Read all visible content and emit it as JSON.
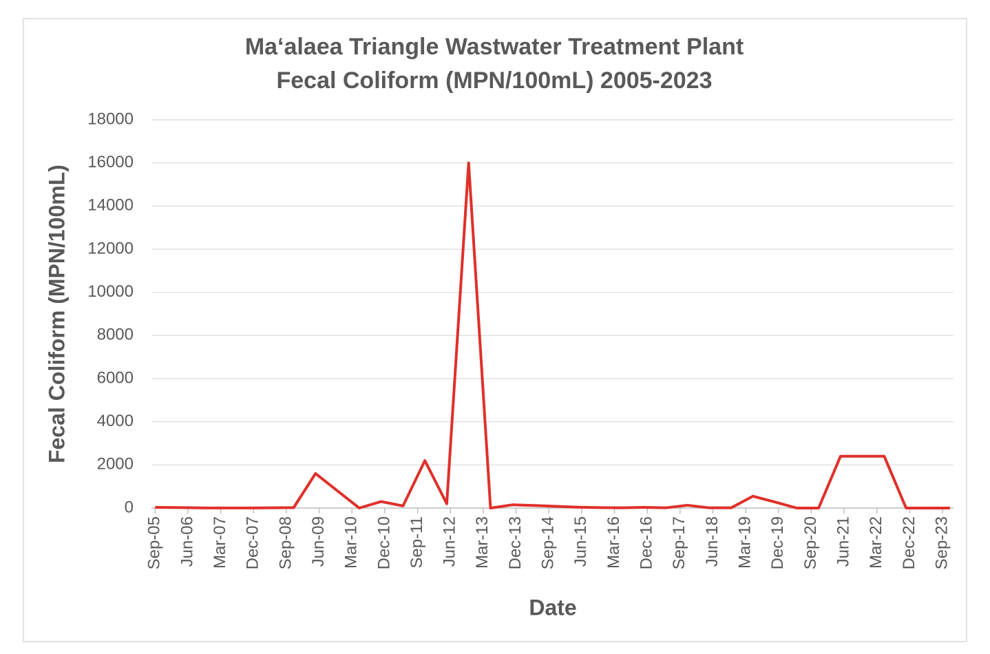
{
  "chart_data": {
    "type": "line",
    "title": [
      "Maʻalaea Triangle Wastwater Treatment Plant",
      "Fecal Coliform (MPN/100mL) 2005-2023"
    ],
    "x_label": "Date",
    "y_label": "Fecal Coliform (MPN/100mL)",
    "x": [
      "2005-09",
      "2006-05",
      "2006-11",
      "2007-05",
      "2007-11",
      "2008-05",
      "2008-11",
      "2009-05",
      "2009-11",
      "2010-05",
      "2010-11",
      "2011-05",
      "2011-11",
      "2012-05",
      "2012-11",
      "2013-05",
      "2013-11",
      "2014-05",
      "2014-11",
      "2015-05",
      "2015-11",
      "2016-05",
      "2016-11",
      "2017-05",
      "2017-11",
      "2018-05",
      "2018-11",
      "2019-05",
      "2019-11",
      "2020-05",
      "2020-11",
      "2021-05",
      "2021-11",
      "2022-05",
      "2022-11",
      "2023-05",
      "2023-11"
    ],
    "series": [
      {
        "name": "Fecal Coliform",
        "color": "#e0302a",
        "values": [
          30,
          20,
          5,
          5,
          5,
          10,
          20,
          1600,
          800,
          0,
          300,
          100,
          2200,
          200,
          16000,
          0,
          150,
          120,
          80,
          40,
          20,
          10,
          30,
          10,
          130,
          10,
          10,
          550,
          280,
          0,
          0,
          2400,
          2400,
          2400,
          0,
          0,
          0
        ]
      }
    ],
    "xlim": [
      "2005-08",
      "2023-12"
    ],
    "xticks": [
      {
        "value": "2005-09",
        "label": "Sep-05"
      },
      {
        "value": "2006-06",
        "label": "Jun-06"
      },
      {
        "value": "2007-03",
        "label": "Mar-07"
      },
      {
        "value": "2007-12",
        "label": "Dec-07"
      },
      {
        "value": "2008-09",
        "label": "Sep-08"
      },
      {
        "value": "2009-06",
        "label": "Jun-09"
      },
      {
        "value": "2010-03",
        "label": "Mar-10"
      },
      {
        "value": "2010-12",
        "label": "Dec-10"
      },
      {
        "value": "2011-09",
        "label": "Sep-11"
      },
      {
        "value": "2012-06",
        "label": "Jun-12"
      },
      {
        "value": "2013-03",
        "label": "Mar-13"
      },
      {
        "value": "2013-12",
        "label": "Dec-13"
      },
      {
        "value": "2014-09",
        "label": "Sep-14"
      },
      {
        "value": "2015-06",
        "label": "Jun-15"
      },
      {
        "value": "2016-03",
        "label": "Mar-16"
      },
      {
        "value": "2016-12",
        "label": "Dec-16"
      },
      {
        "value": "2017-09",
        "label": "Sep-17"
      },
      {
        "value": "2018-06",
        "label": "Jun-18"
      },
      {
        "value": "2019-03",
        "label": "Mar-19"
      },
      {
        "value": "2019-12",
        "label": "Dec-19"
      },
      {
        "value": "2020-09",
        "label": "Sep-20"
      },
      {
        "value": "2021-06",
        "label": "Jun-21"
      },
      {
        "value": "2022-03",
        "label": "Mar-22"
      },
      {
        "value": "2022-12",
        "label": "Dec-22"
      },
      {
        "value": "2023-09",
        "label": "Sep-23"
      }
    ],
    "ylim": [
      0,
      18000
    ],
    "yticks": [
      0,
      2000,
      4000,
      6000,
      8000,
      10000,
      12000,
      14000,
      16000,
      18000
    ],
    "grid": true
  }
}
